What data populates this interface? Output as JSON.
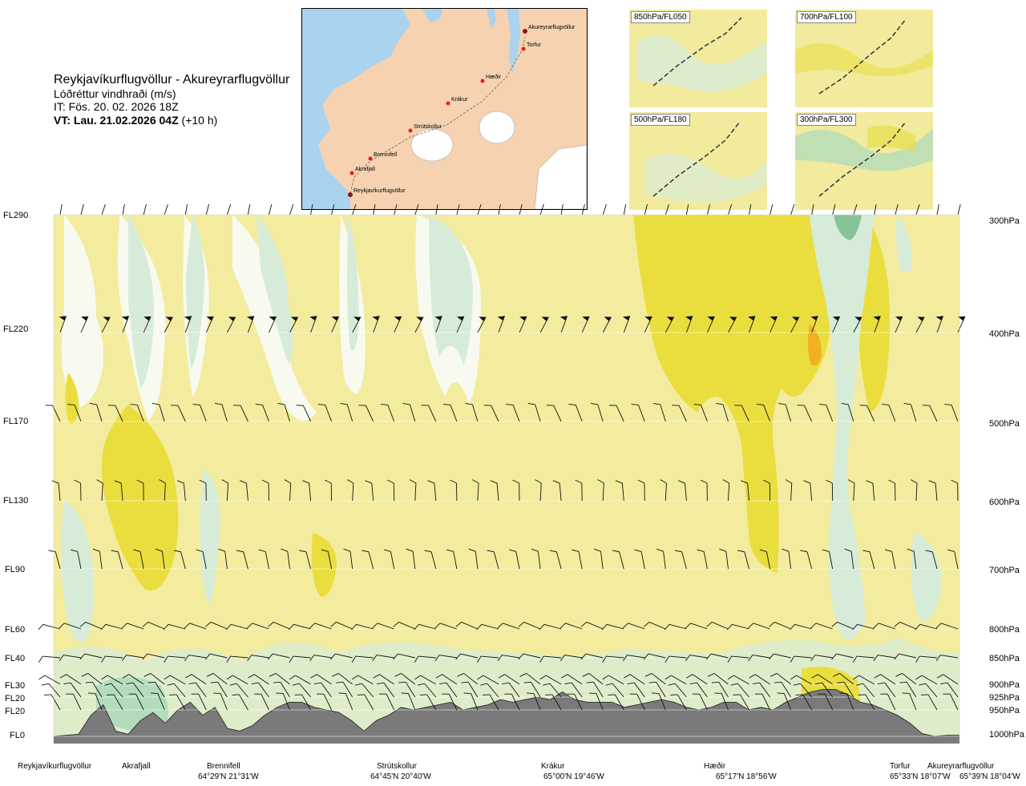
{
  "header": {
    "route": "Reykjavíkurflugvöllur - Akureyrarflugvöllur",
    "subtitle": "Lóðréttur vindhraði (m/s)",
    "issue_time": "IT: Fös. 20. 02. 2026 18Z",
    "valid_time_label": "VT: Lau. 21.02.2026 04Z",
    "valid_time_offset": "(+10 h)"
  },
  "map": {
    "points": [
      "Akureyrarflugvöllur",
      "Torfur",
      "Hæðir",
      "Krákur",
      "Strútskollur",
      "Brennifell",
      "Akrafjall",
      "Reykjavíkurflugvöllur"
    ]
  },
  "insets": [
    "850hPa/FL050",
    "700hPa/FL100",
    "500hPa/FL180",
    "300hPa/FL300"
  ],
  "colors": {
    "bg_pale": "#f3ec9f",
    "yellow": "#e9de3e",
    "orange": "#f0b020",
    "green_light": "#d7ecd8",
    "green_mid": "#b3dcbc",
    "green_dark": "#86c597",
    "white_band": "#f8faf0",
    "terrain": "#7a7a7a",
    "sea": "#a9d3ef",
    "land": "#f4c39a"
  },
  "chart_data": {
    "type": "heatmap",
    "title": "Reykjavíkurflugvöllur - Akureyrarflugvöllur",
    "variable": "Lóðréttur vindhraði (m/s)",
    "y_levels_fl": [
      "FL290",
      "FL220",
      "FL170",
      "FL130",
      "FL90",
      "FL60",
      "FL40",
      "FL30",
      "FL20",
      "FL20",
      "FL0"
    ],
    "y_levels_hpa": [
      "300hPa",
      "400hPa",
      "500hPa",
      "600hPa",
      "700hPa",
      "800hPa",
      "850hPa",
      "900hPa",
      "925hPa",
      "950hPa",
      "1000hPa"
    ],
    "waypoints": [
      {
        "name": "Reykjavíkurflugvöllur",
        "coord": ""
      },
      {
        "name": "Akrafjall",
        "coord": ""
      },
      {
        "name": "Brennifell",
        "coord": "64°29'N 21°31'W"
      },
      {
        "name": "Strútskollur",
        "coord": "64°45'N 20°40'W"
      },
      {
        "name": "Krákur",
        "coord": "65°00'N 19°46'W"
      },
      {
        "name": "Hæðir",
        "coord": "65°17'N 18°56'W"
      },
      {
        "name": "Torfur",
        "coord": "65°33'N 18°07'W"
      },
      {
        "name": "Akureyrarflugvöllur",
        "coord": "65°39'N 18°04'W"
      }
    ],
    "terrain_profile_hpa": [
      1000,
      998,
      996,
      960,
      940,
      990,
      996,
      970,
      955,
      975,
      950,
      935,
      960,
      945,
      985,
      990,
      980,
      960,
      945,
      935,
      935,
      945,
      950,
      955,
      970,
      990,
      970,
      960,
      945,
      950,
      945,
      940,
      935,
      950,
      945,
      940,
      930,
      935,
      930,
      925,
      930,
      915,
      930,
      935,
      935,
      935,
      945,
      940,
      935,
      930,
      935,
      945,
      950,
      945,
      935,
      935,
      950,
      945,
      950,
      935,
      925,
      915,
      910,
      910,
      920,
      935,
      940,
      950,
      960,
      975,
      995,
      1000,
      998,
      998
    ],
    "legend": "none",
    "grid": true
  }
}
